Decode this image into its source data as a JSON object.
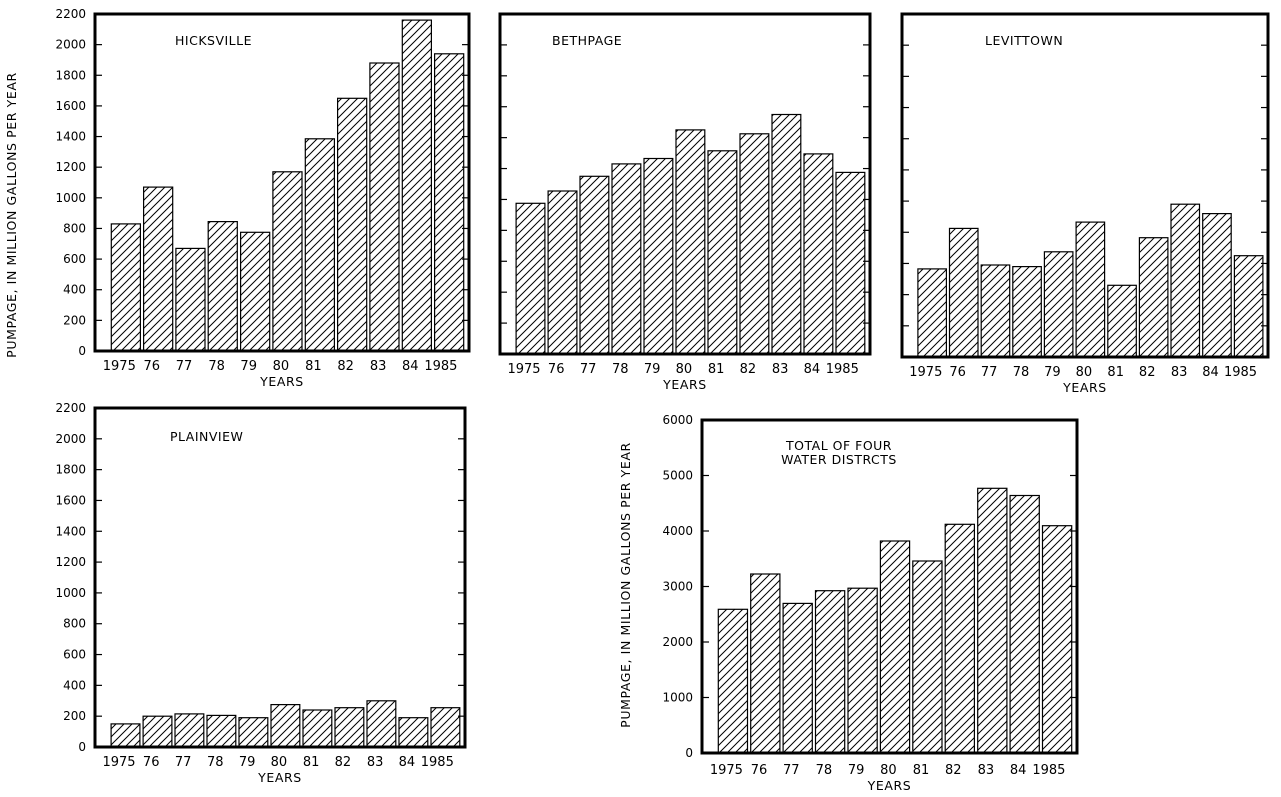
{
  "figure": {
    "ylabel": "PUMPAGE, IN MILLION GALLONS PER YEAR",
    "ylabel_secondary": "PUMPAGE, IN MILLION GALLONS PER YEAR"
  },
  "chart_data": [
    {
      "type": "bar",
      "title": "HICKSVILLE",
      "xlabel": "YEARS",
      "categories": [
        "1975",
        "76",
        "77",
        "78",
        "79",
        "80",
        "81",
        "82",
        "83",
        "84",
        "1985"
      ],
      "values": [
        830,
        1070,
        670,
        845,
        775,
        1170,
        1385,
        1650,
        1880,
        2160,
        1940
      ],
      "ylim": [
        0,
        2200
      ],
      "yticks": [
        0,
        200,
        400,
        600,
        800,
        1000,
        1200,
        1400,
        1600,
        1800,
        2000,
        2200
      ],
      "ytick_labels_shown": true,
      "bar_pattern": "diagonal-hatch"
    },
    {
      "type": "bar",
      "title": "BETHPAGE",
      "xlabel": "YEARS",
      "categories": [
        "1975",
        "76",
        "77",
        "78",
        "79",
        "80",
        "81",
        "82",
        "83",
        "84",
        "1985"
      ],
      "values": [
        975,
        1055,
        1150,
        1230,
        1265,
        1450,
        1315,
        1425,
        1550,
        1295,
        1175
      ],
      "ylim": [
        0,
        2200
      ],
      "yticks": [
        0,
        200,
        400,
        600,
        800,
        1000,
        1200,
        1400,
        1600,
        1800,
        2000,
        2200
      ],
      "ytick_labels_shown": false,
      "bar_pattern": "diagonal-hatch"
    },
    {
      "type": "bar",
      "title": "LEVITTOWN",
      "xlabel": "YEARS",
      "categories": [
        "1975",
        "76",
        "77",
        "78",
        "79",
        "80",
        "81",
        "82",
        "83",
        "84",
        "1985"
      ],
      "values": [
        565,
        825,
        590,
        580,
        675,
        865,
        460,
        765,
        980,
        920,
        650
      ],
      "ylim": [
        0,
        2200
      ],
      "yticks": [
        0,
        200,
        400,
        600,
        800,
        1000,
        1200,
        1400,
        1600,
        1800,
        2000,
        2200
      ],
      "ytick_labels_shown": false,
      "bar_pattern": "diagonal-hatch"
    },
    {
      "type": "bar",
      "title": "PLAINVIEW",
      "xlabel": "YEARS",
      "categories": [
        "1975",
        "76",
        "77",
        "78",
        "79",
        "80",
        "81",
        "82",
        "83",
        "84",
        "1985"
      ],
      "values": [
        150,
        200,
        215,
        205,
        190,
        275,
        240,
        255,
        300,
        190,
        255
      ],
      "ylim": [
        0,
        2200
      ],
      "yticks": [
        0,
        200,
        400,
        600,
        800,
        1000,
        1200,
        1400,
        1600,
        1800,
        2000,
        2200
      ],
      "ytick_labels_shown": true,
      "bar_pattern": "diagonal-hatch"
    },
    {
      "type": "bar",
      "title": "TOTAL OF FOUR\nWATER DISTRCTS",
      "xlabel": "YEARS",
      "categories": [
        "1975",
        "76",
        "77",
        "78",
        "79",
        "80",
        "81",
        "82",
        "83",
        "84",
        "1985"
      ],
      "values": [
        2590,
        3225,
        2695,
        2925,
        2970,
        3820,
        3460,
        4120,
        4770,
        4640,
        4095
      ],
      "ylim": [
        0,
        6000
      ],
      "yticks": [
        0,
        1000,
        2000,
        3000,
        4000,
        5000,
        6000
      ],
      "ytick_labels_shown": true,
      "bar_pattern": "diagonal-hatch"
    }
  ]
}
